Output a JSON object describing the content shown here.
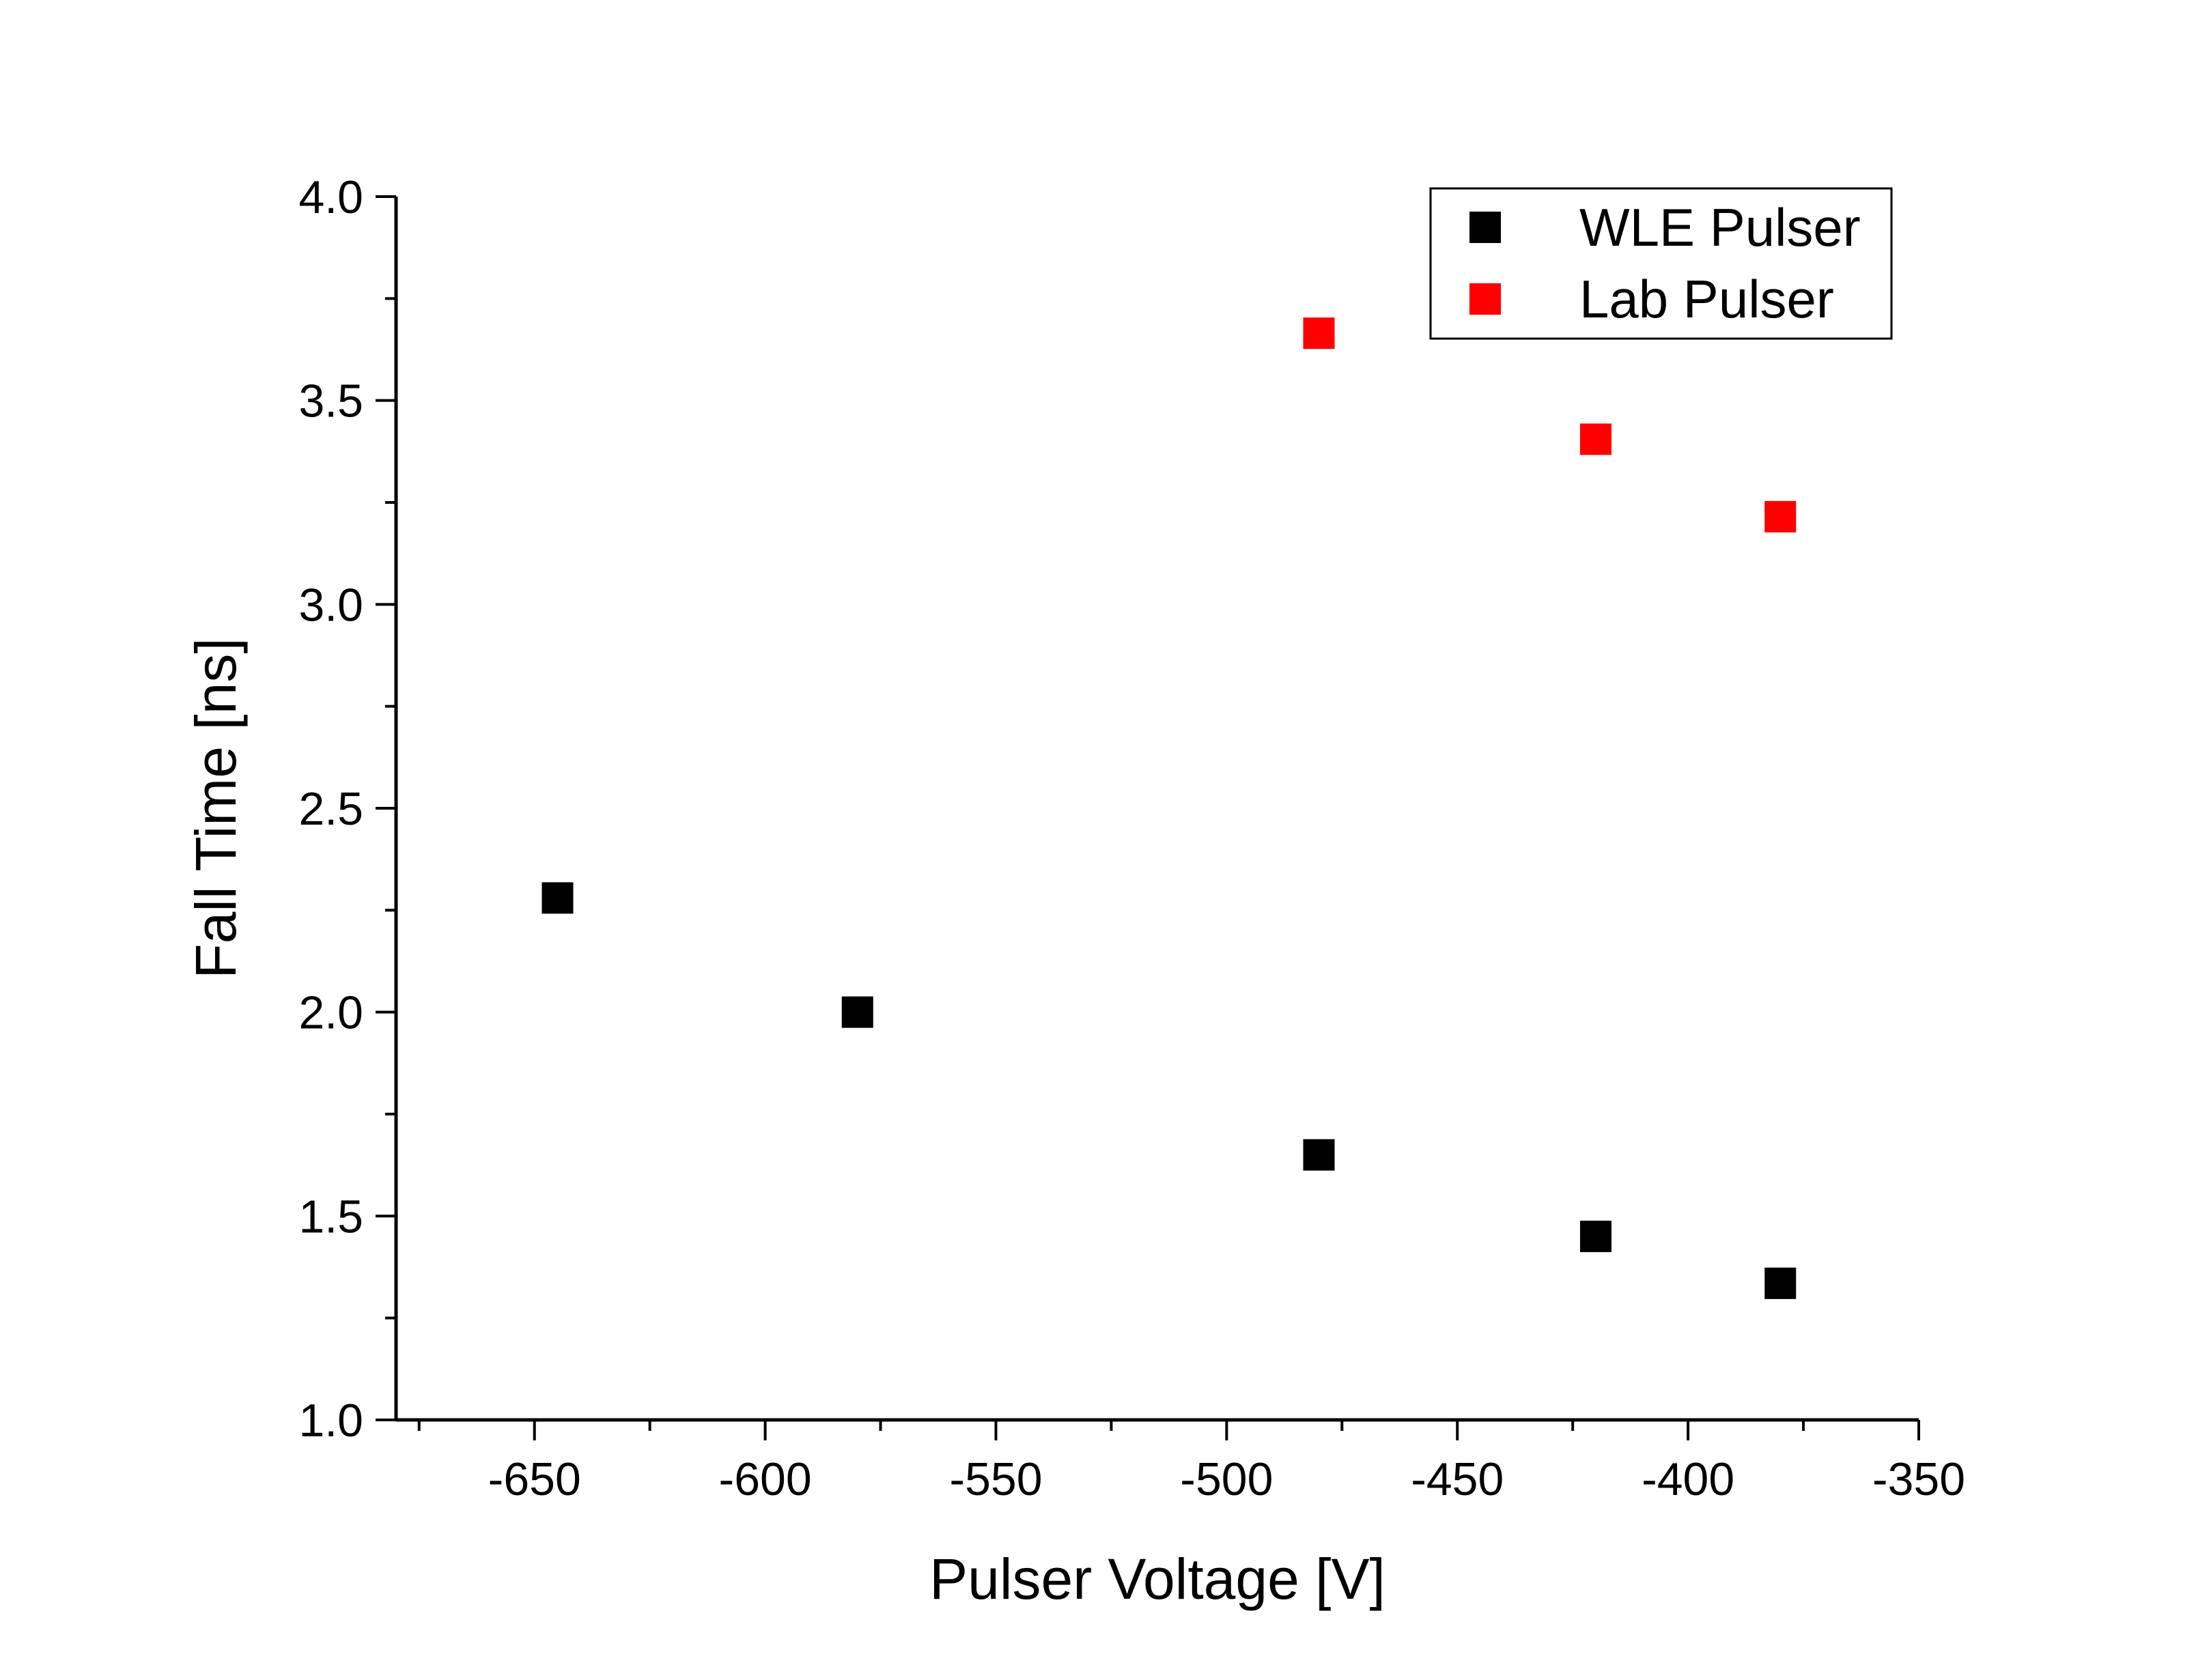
{
  "chart_data": {
    "type": "scatter",
    "title": "",
    "xlabel": "Pulser Voltage [V]",
    "ylabel": "Fall Time [ns]",
    "xlim": [
      -680,
      -350
    ],
    "ylim": [
      1.0,
      4.0
    ],
    "x_ticks": [
      -650,
      -600,
      -550,
      -500,
      -450,
      -400,
      -350
    ],
    "x_tick_labels": [
      "-650",
      "-600",
      "-550",
      "-500",
      "-450",
      "-400",
      "-350"
    ],
    "y_ticks": [
      1.0,
      1.5,
      2.0,
      2.5,
      3.0,
      3.5,
      4.0
    ],
    "y_tick_labels": [
      "1.0",
      "1.5",
      "2.0",
      "2.5",
      "3.0",
      "3.5",
      "4.0"
    ],
    "grid": false,
    "legend_position": "top-right",
    "series": [
      {
        "name": "WLE Pulser",
        "color": "#000000",
        "marker": "square",
        "x": [
          -645,
          -580,
          -480,
          -420,
          -380
        ],
        "y": [
          2.28,
          2.0,
          1.65,
          1.45,
          1.335
        ]
      },
      {
        "name": "Lab Pulser",
        "color": "#ff0000",
        "marker": "square",
        "x": [
          -480,
          -420,
          -380
        ],
        "y": [
          3.665,
          3.405,
          3.215
        ]
      }
    ]
  }
}
